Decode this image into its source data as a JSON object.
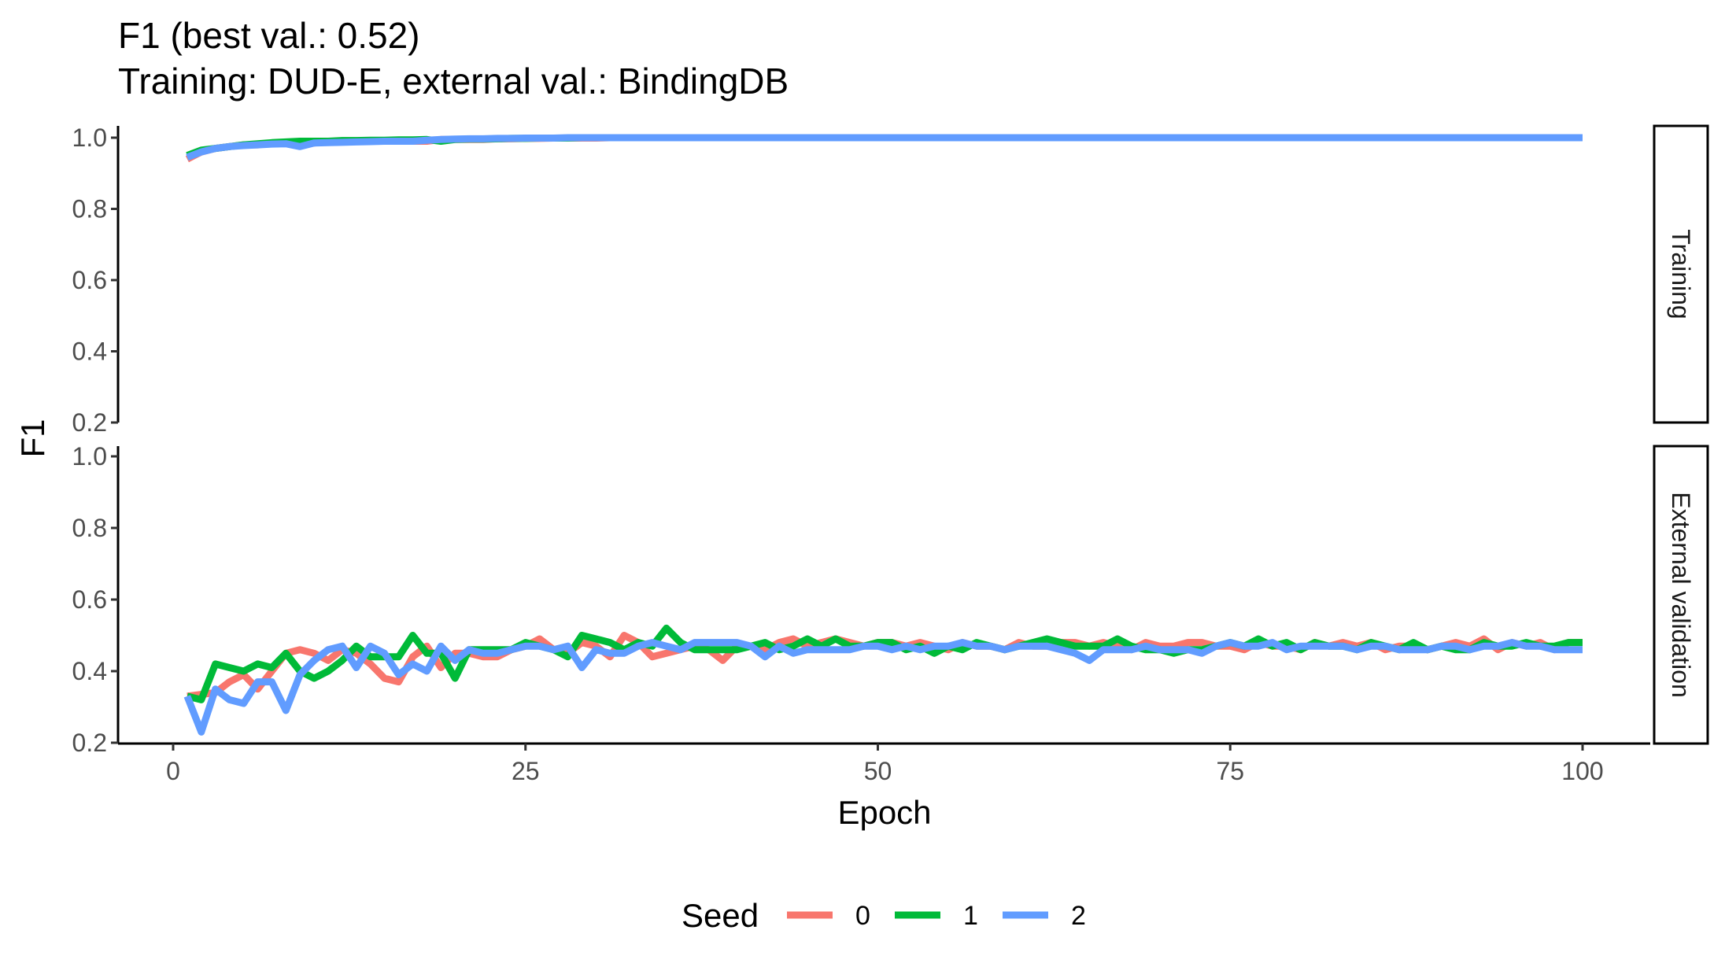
{
  "chart_data": {
    "type": "line",
    "title": "F1 (best val.: 0.52)",
    "subtitle": "Training: DUD-E, external val.: BindingDB",
    "xlabel": "Epoch",
    "ylabel": "F1",
    "xlim": [
      0,
      100
    ],
    "ylim": [
      0.2,
      1.0
    ],
    "x_ticks": [
      0,
      25,
      50,
      75,
      100
    ],
    "y_ticks": [
      0.2,
      0.4,
      0.6,
      0.8,
      1.0
    ],
    "grid": false,
    "legend": {
      "title": "Seed",
      "position": "bottom"
    },
    "epochs": {
      "start": 1,
      "end": 100
    },
    "panels": [
      {
        "label": "Training",
        "series": [
          {
            "name": "0",
            "color": "#F8766D",
            "values": [
              0.94,
              0.96,
              0.97,
              0.975,
              0.98,
              0.98,
              0.985,
              0.985,
              0.985,
              0.985,
              0.99,
              0.99,
              0.99,
              0.99,
              0.99,
              0.99,
              0.99,
              0.99,
              0.995,
              0.995,
              0.995,
              0.995,
              0.997,
              0.997,
              0.998,
              0.998,
              0.999,
              0.999,
              0.999,
              0.999,
              1,
              1,
              1,
              1,
              1,
              1,
              1,
              1,
              1,
              1,
              1,
              1,
              1,
              1,
              1,
              1,
              1,
              1,
              1,
              1,
              1,
              1,
              1,
              1,
              1,
              1,
              1,
              1,
              1,
              1,
              1,
              1,
              1,
              1,
              1,
              1,
              1,
              1,
              1,
              1,
              1,
              1,
              1,
              1,
              1,
              1,
              1,
              1,
              1,
              1,
              1,
              1,
              1,
              1,
              1,
              1,
              1,
              1,
              1,
              1,
              1,
              1,
              1,
              1,
              1,
              1,
              1,
              1,
              1,
              1
            ]
          },
          {
            "name": "1",
            "color": "#00BA38",
            "values": [
              0.95,
              0.965,
              0.97,
              0.975,
              0.98,
              0.983,
              0.986,
              0.988,
              0.99,
              0.99,
              0.99,
              0.992,
              0.992,
              0.993,
              0.993,
              0.994,
              0.994,
              0.995,
              0.99,
              0.995,
              0.996,
              0.996,
              0.997,
              0.998,
              0.998,
              0.999,
              0.999,
              0.999,
              1,
              1,
              1,
              1,
              1,
              1,
              1,
              1,
              1,
              1,
              1,
              1,
              1,
              1,
              1,
              1,
              1,
              1,
              1,
              1,
              1,
              1,
              1,
              1,
              1,
              1,
              1,
              1,
              1,
              1,
              1,
              1,
              1,
              1,
              1,
              1,
              1,
              1,
              1,
              1,
              1,
              1,
              1,
              1,
              1,
              1,
              1,
              1,
              1,
              1,
              1,
              1,
              1,
              1,
              1,
              1,
              1,
              1,
              1,
              1,
              1,
              1,
              1,
              1,
              1,
              1,
              1,
              1,
              1,
              1,
              1,
              1
            ]
          },
          {
            "name": "2",
            "color": "#619CFF",
            "values": [
              0.945,
              0.96,
              0.97,
              0.975,
              0.978,
              0.98,
              0.982,
              0.983,
              0.975,
              0.985,
              0.986,
              0.987,
              0.988,
              0.989,
              0.99,
              0.99,
              0.99,
              0.993,
              0.995,
              0.996,
              0.997,
              0.997,
              0.998,
              0.998,
              0.999,
              0.999,
              0.999,
              1,
              1,
              1,
              1,
              1,
              1,
              1,
              1,
              1,
              1,
              1,
              1,
              1,
              1,
              1,
              1,
              1,
              1,
              1,
              1,
              1,
              1,
              1,
              1,
              1,
              1,
              1,
              1,
              1,
              1,
              1,
              1,
              1,
              1,
              1,
              1,
              1,
              1,
              1,
              1,
              1,
              1,
              1,
              1,
              1,
              1,
              1,
              1,
              1,
              1,
              1,
              1,
              1,
              1,
              1,
              1,
              1,
              1,
              1,
              1,
              1,
              1,
              1,
              1,
              1,
              1,
              1,
              1,
              1,
              1,
              1,
              1,
              1
            ]
          }
        ]
      },
      {
        "label": "External validation",
        "series": [
          {
            "name": "0",
            "color": "#F8766D",
            "values": [
              0.33,
              0.335,
              0.34,
              0.37,
              0.39,
              0.35,
              0.4,
              0.45,
              0.46,
              0.45,
              0.43,
              0.46,
              0.45,
              0.42,
              0.38,
              0.37,
              0.44,
              0.47,
              0.41,
              0.45,
              0.45,
              0.44,
              0.44,
              0.46,
              0.47,
              0.49,
              0.46,
              0.45,
              0.48,
              0.47,
              0.44,
              0.5,
              0.48,
              0.44,
              0.45,
              0.46,
              0.47,
              0.46,
              0.43,
              0.47,
              0.47,
              0.46,
              0.48,
              0.49,
              0.47,
              0.48,
              0.49,
              0.48,
              0.47,
              0.48,
              0.48,
              0.47,
              0.48,
              0.47,
              0.46,
              0.48,
              0.47,
              0.47,
              0.46,
              0.48,
              0.47,
              0.47,
              0.48,
              0.48,
              0.47,
              0.48,
              0.47,
              0.46,
              0.48,
              0.47,
              0.47,
              0.48,
              0.48,
              0.47,
              0.47,
              0.46,
              0.48,
              0.47,
              0.47,
              0.46,
              0.48,
              0.47,
              0.48,
              0.47,
              0.48,
              0.46,
              0.47,
              0.47,
              0.46,
              0.47,
              0.48,
              0.47,
              0.49,
              0.46,
              0.48,
              0.47,
              0.48,
              0.46,
              0.48,
              0.48
            ]
          },
          {
            "name": "1",
            "color": "#00BA38",
            "values": [
              0.33,
              0.32,
              0.42,
              0.41,
              0.4,
              0.42,
              0.41,
              0.45,
              0.4,
              0.38,
              0.4,
              0.43,
              0.47,
              0.44,
              0.44,
              0.44,
              0.5,
              0.45,
              0.45,
              0.38,
              0.46,
              0.46,
              0.46,
              0.46,
              0.48,
              0.47,
              0.46,
              0.44,
              0.5,
              0.49,
              0.48,
              0.46,
              0.48,
              0.47,
              0.52,
              0.48,
              0.46,
              0.46,
              0.46,
              0.46,
              0.47,
              0.48,
              0.46,
              0.47,
              0.49,
              0.47,
              0.49,
              0.47,
              0.47,
              0.48,
              0.48,
              0.46,
              0.47,
              0.45,
              0.47,
              0.46,
              0.48,
              0.47,
              0.46,
              0.47,
              0.48,
              0.49,
              0.48,
              0.47,
              0.47,
              0.47,
              0.49,
              0.47,
              0.46,
              0.46,
              0.45,
              0.46,
              0.46,
              0.47,
              0.48,
              0.47,
              0.49,
              0.47,
              0.48,
              0.46,
              0.48,
              0.47,
              0.47,
              0.46,
              0.48,
              0.47,
              0.46,
              0.48,
              0.46,
              0.47,
              0.46,
              0.46,
              0.48,
              0.47,
              0.47,
              0.48,
              0.47,
              0.47,
              0.48,
              0.48
            ]
          },
          {
            "name": "2",
            "color": "#619CFF",
            "values": [
              0.33,
              0.23,
              0.35,
              0.32,
              0.31,
              0.37,
              0.37,
              0.29,
              0.39,
              0.43,
              0.46,
              0.47,
              0.41,
              0.47,
              0.45,
              0.39,
              0.42,
              0.4,
              0.47,
              0.43,
              0.46,
              0.45,
              0.45,
              0.46,
              0.47,
              0.47,
              0.46,
              0.47,
              0.41,
              0.46,
              0.45,
              0.45,
              0.47,
              0.48,
              0.47,
              0.46,
              0.48,
              0.48,
              0.48,
              0.48,
              0.47,
              0.44,
              0.47,
              0.45,
              0.46,
              0.46,
              0.46,
              0.46,
              0.47,
              0.47,
              0.46,
              0.47,
              0.46,
              0.47,
              0.47,
              0.48,
              0.47,
              0.47,
              0.46,
              0.47,
              0.47,
              0.47,
              0.46,
              0.45,
              0.43,
              0.46,
              0.46,
              0.46,
              0.47,
              0.46,
              0.46,
              0.46,
              0.45,
              0.47,
              0.48,
              0.47,
              0.47,
              0.48,
              0.46,
              0.47,
              0.47,
              0.47,
              0.47,
              0.46,
              0.47,
              0.47,
              0.46,
              0.46,
              0.46,
              0.47,
              0.47,
              0.46,
              0.47,
              0.47,
              0.48,
              0.47,
              0.47,
              0.46,
              0.46,
              0.46
            ]
          }
        ]
      }
    ]
  }
}
